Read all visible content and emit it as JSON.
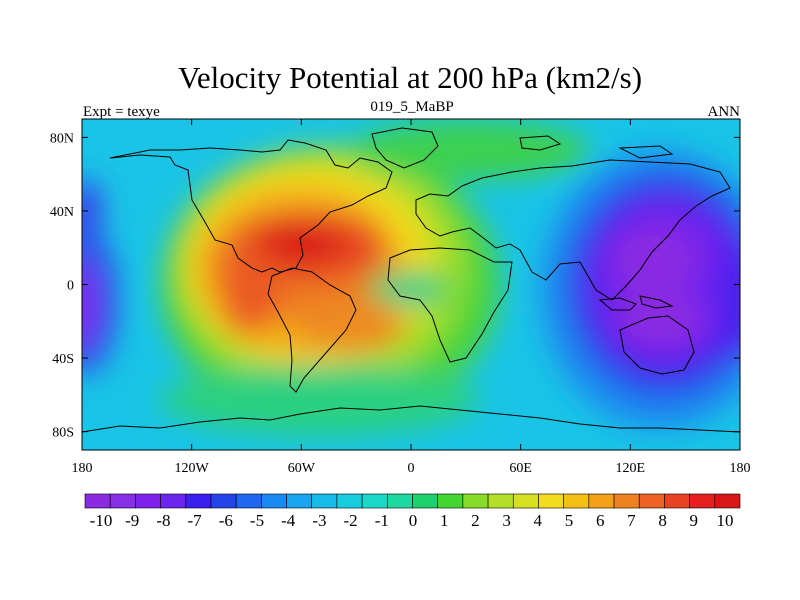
{
  "title": "Velocity Potential at 200 hPa (km2/s)",
  "left_label": "Expt = texye",
  "center_label": "019_5_MaBP",
  "right_label": "ANN",
  "map": {
    "projection": "cylindrical equidistant",
    "lon_range": [
      -180,
      180
    ],
    "lat_range": [
      -90,
      90
    ],
    "lon_ticks": [
      {
        "value": -180,
        "label": "180"
      },
      {
        "value": -120,
        "label": "120W"
      },
      {
        "value": -60,
        "label": "60W"
      },
      {
        "value": 0,
        "label": "0"
      },
      {
        "value": 60,
        "label": "60E"
      },
      {
        "value": 120,
        "label": "120E"
      },
      {
        "value": 180,
        "label": "180"
      }
    ],
    "lat_ticks": [
      {
        "value": 80,
        "label": "80N"
      },
      {
        "value": 40,
        "label": "40N"
      },
      {
        "value": 0,
        "label": "0"
      },
      {
        "value": -40,
        "label": "40S"
      },
      {
        "value": -80,
        "label": "80S"
      }
    ],
    "field_features": [
      {
        "kind": "maximum",
        "lon": -60,
        "lat": 18,
        "value": 10
      },
      {
        "kind": "maximum",
        "lon": -70,
        "lat": -8,
        "value": 8
      },
      {
        "kind": "maximum",
        "lon": -40,
        "lat": -25,
        "value": 8
      },
      {
        "kind": "minimum",
        "lon": 0,
        "lat": 0,
        "value": 2
      },
      {
        "kind": "minimum",
        "lon": 140,
        "lat": 10,
        "value": -10
      },
      {
        "kind": "minimum",
        "lon": 140,
        "lat": -25,
        "value": -10
      },
      {
        "kind": "minimum",
        "lon": -175,
        "lat": -15,
        "value": -10
      },
      {
        "kind": "minimum",
        "lon": -178,
        "lat": 35,
        "value": -7
      }
    ]
  },
  "colorbar": {
    "labels": [
      "-10",
      "-9",
      "-8",
      "-7",
      "-6",
      "-5",
      "-4",
      "-3",
      "-2",
      "-1",
      "0",
      "1",
      "2",
      "3",
      "4",
      "5",
      "6",
      "7",
      "8",
      "9",
      "10"
    ],
    "colors": [
      "#8a2be2",
      "#8530e6",
      "#7f22f0",
      "#6c25ee",
      "#3a1ff0",
      "#2244e8",
      "#1f66f0",
      "#1a8af2",
      "#19a4f0",
      "#16bce8",
      "#18cce0",
      "#19d8c8",
      "#1ed8a0",
      "#1cd26c",
      "#44d630",
      "#86dc28",
      "#b4e028",
      "#d8e022",
      "#f2dc1c",
      "#f4c018",
      "#f4a018",
      "#ee8220",
      "#ee6224",
      "#ea4224",
      "#e62020",
      "#d81818"
    ]
  }
}
